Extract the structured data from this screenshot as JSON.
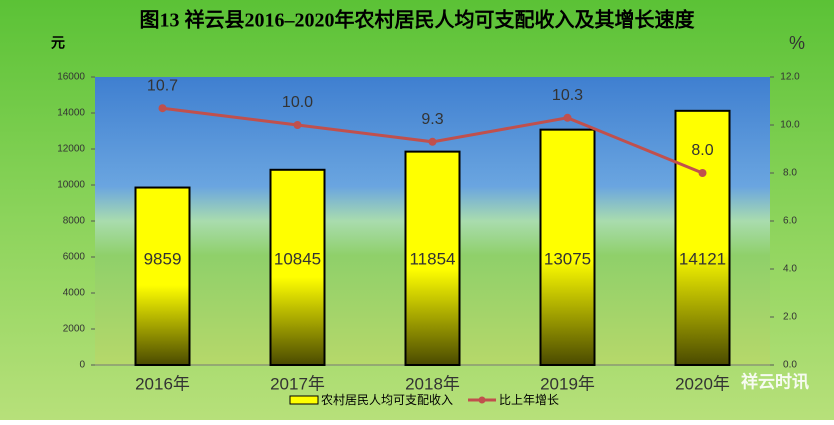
{
  "chart_data": {
    "type": "bar-line",
    "title": "图13  祥云县2016–2020年农村居民人均可支配收入及其增长速度",
    "y_label": "元",
    "y2_label": "%",
    "categories": [
      "2016年",
      "2017年",
      "2018年",
      "2019年",
      "2020年"
    ],
    "series": [
      {
        "name": "农村居民人均可支配收入",
        "type": "bar",
        "color": "#ffff00",
        "values": [
          9859,
          10845,
          11854,
          13075,
          14121
        ]
      },
      {
        "name": "比上年增长",
        "type": "line",
        "axis": "y2",
        "color": "#c0504d",
        "values": [
          10.7,
          10.0,
          9.3,
          10.3,
          8.0
        ],
        "value_labels": [
          "10.7",
          "10.0",
          "9.3",
          "10.3",
          "8.0"
        ]
      }
    ],
    "ylim": [
      0,
      16000
    ],
    "yticks": [
      0,
      2000,
      4000,
      6000,
      8000,
      10000,
      12000,
      14000,
      16000
    ],
    "y2lim": [
      0,
      12
    ],
    "y2ticks": [
      {
        "value": 0,
        "label": "0.0"
      },
      {
        "value": 2,
        "label": "2.0"
      },
      {
        "value": 4,
        "label": "4.0"
      },
      {
        "value": 6,
        "label": "6.0"
      },
      {
        "value": 8,
        "label": "8.0"
      },
      {
        "value": 10,
        "label": "10.0"
      },
      {
        "value": 12,
        "label": "12.0"
      }
    ],
    "legend": "bottom",
    "watermark": "祥云时讯"
  }
}
